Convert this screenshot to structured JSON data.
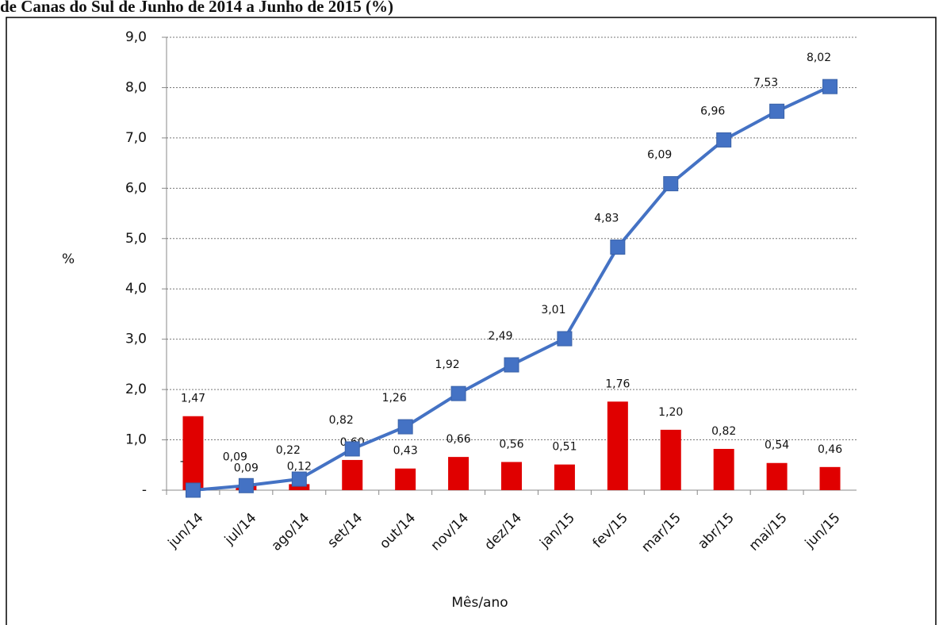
{
  "chart_data": {
    "type": "combo",
    "title": "de Canas do Sul de Junho de 2014 a Junho de 2015 (%)",
    "y_label": "%",
    "x_label": "Mês/ano",
    "categories": [
      "jun/14",
      "jul/14",
      "ago/14",
      "set/14",
      "out/14",
      "nov/14",
      "dez/14",
      "jan/15",
      "fev/15",
      "mar/15",
      "abr/15",
      "mai/15",
      "jun/15"
    ],
    "series": [
      {
        "type": "bar",
        "color": "#e00000",
        "values": [
          1.47,
          0.09,
          0.12,
          0.6,
          0.43,
          0.66,
          0.56,
          0.51,
          1.76,
          1.2,
          0.82,
          0.54,
          0.46
        ],
        "value_labels": [
          "1,47",
          "0,09",
          "0,12",
          "0,60",
          "0,43",
          "0,66",
          "0,56",
          "0,51",
          "1,76",
          "1,20",
          "0,82",
          "0,54",
          "0,46"
        ]
      },
      {
        "type": "line",
        "color": "#4472c4",
        "values": [
          0,
          0.09,
          0.22,
          0.82,
          1.26,
          1.92,
          2.49,
          3.01,
          4.83,
          6.09,
          6.96,
          7.53,
          8.02
        ],
        "value_labels": [
          "-",
          "0,09",
          "0,22",
          "0,82",
          "1,26",
          "1,92",
          "2,49",
          "3,01",
          "4,83",
          "6,09",
          "6,96",
          "7,53",
          "8,02"
        ]
      }
    ],
    "ylim": [
      0,
      9
    ],
    "yticks": [
      {
        "value": 0,
        "label": "-"
      },
      {
        "value": 1,
        "label": "1,0"
      },
      {
        "value": 2,
        "label": "2,0"
      },
      {
        "value": 3,
        "label": "3,0"
      },
      {
        "value": 4,
        "label": "4,0"
      },
      {
        "value": 5,
        "label": "5,0"
      },
      {
        "value": 6,
        "label": "6,0"
      },
      {
        "value": 7,
        "label": "7,0"
      },
      {
        "value": 8,
        "label": "8,0"
      },
      {
        "value": 9,
        "label": "9,0"
      }
    ],
    "grid": true
  }
}
